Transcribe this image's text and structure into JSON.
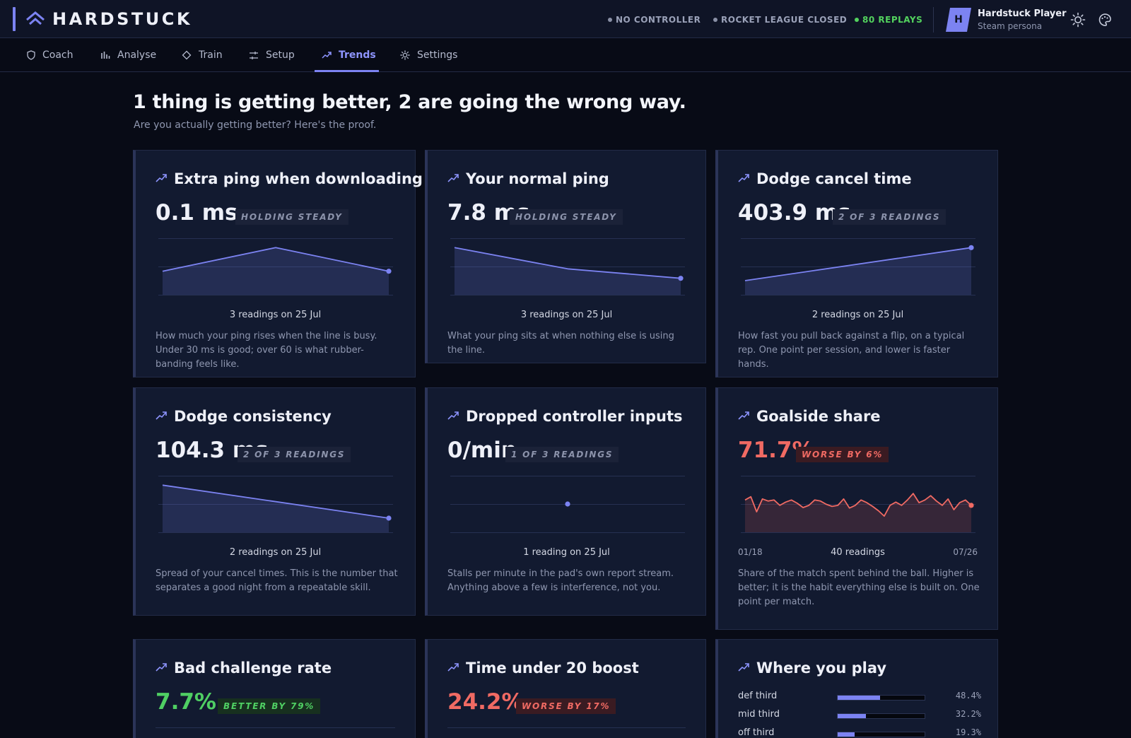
{
  "app": {
    "name": "HARDSTUCK"
  },
  "status": [
    {
      "label": "NO CONTROLLER",
      "state": "off"
    },
    {
      "label": "ROCKET LEAGUE CLOSED",
      "state": "off"
    },
    {
      "label": "80 REPLAYS",
      "state": "ok"
    }
  ],
  "user": {
    "initial": "H",
    "name": "Hardstuck Player",
    "subtitle": "Steam persona"
  },
  "icons": {
    "theme_toggle": "sun-icon",
    "palette": "palette-icon"
  },
  "tabs": [
    {
      "label": "Coach",
      "icon": "shield-icon",
      "active": false
    },
    {
      "label": "Analyse",
      "icon": "bars-icon",
      "active": false
    },
    {
      "label": "Train",
      "icon": "diamond-icon",
      "active": false
    },
    {
      "label": "Setup",
      "icon": "sliders-icon",
      "active": false
    },
    {
      "label": "Trends",
      "icon": "trend-icon",
      "active": true
    },
    {
      "label": "Settings",
      "icon": "gear-icon",
      "active": false
    }
  ],
  "header": {
    "title": "1 thing is getting better, 2 are going the wrong way.",
    "subtitle": "Are you actually getting better? Here's the proof."
  },
  "colors": {
    "accent": "#7c83f2",
    "bad": "#f06a63",
    "good": "#4fcf63",
    "neutral": "#8c93ab"
  },
  "cards": [
    {
      "title": "Extra ping when downloading",
      "value": "0.1 ms",
      "badge": "HOLDING STEADY",
      "tone": "neutral",
      "caption": "3 readings on 25 Jul",
      "description": "How much your ping rises when the line is busy. Under 30 ms is good; over 60 is what rubber-banding feels like."
    },
    {
      "title": "Your normal ping",
      "value": "7.8 ms",
      "badge": "HOLDING STEADY",
      "tone": "neutral",
      "caption": "3 readings on 25 Jul",
      "description": "What your ping sits at when nothing else is using the line."
    },
    {
      "title": "Dodge cancel time",
      "value": "403.9 ms",
      "badge": "2 OF 3 READINGS",
      "tone": "neutral",
      "caption": "2 readings on 25 Jul",
      "description": "How fast you pull back against a flip, on a typical rep. One point per session, and lower is faster hands."
    },
    {
      "title": "Dodge consistency",
      "value": "104.3 ms",
      "badge": "2 OF 3 READINGS",
      "tone": "neutral",
      "caption": "2 readings on 25 Jul",
      "description": "Spread of your cancel times. This is the number that separates a good night from a repeatable skill."
    },
    {
      "title": "Dropped controller inputs",
      "value": "0/min",
      "badge": "1 OF 3 READINGS",
      "tone": "neutral",
      "caption": "1 reading on 25 Jul",
      "description": "Stalls per minute in the pad's own report stream. Anything above a few is interference, not you."
    },
    {
      "title": "Goalside share",
      "value": "71.7%",
      "badge": "WORSE BY 6%",
      "tone": "bad",
      "caption": "40 readings",
      "date_start": "01/18",
      "date_end": "07/26",
      "description": "Share of the match spent behind the ball. Higher is better; it is the habit everything else is built on. One point per match."
    },
    {
      "title": "Bad challenge rate",
      "value": "7.7%",
      "badge": "BETTER BY 79%",
      "tone": "good"
    },
    {
      "title": "Time under 20 boost",
      "value": "24.2%",
      "badge": "WORSE BY 17%",
      "tone": "bad"
    },
    {
      "title": "Where you play",
      "zones": [
        {
          "label": "def third",
          "pct_text": "48.4%",
          "pct": 48.4
        },
        {
          "label": "mid third",
          "pct_text": "32.2%",
          "pct": 32.2
        },
        {
          "label": "off third",
          "pct_text": "19.3%",
          "pct": 19.3
        }
      ]
    }
  ],
  "chart_data": [
    {
      "type": "line",
      "title": "Extra ping when downloading",
      "y": [
        0.5,
        1.0,
        0.5
      ],
      "ylim": [
        0,
        1.2
      ]
    },
    {
      "type": "line",
      "title": "Your normal ping",
      "y": [
        1.0,
        0.55,
        0.35
      ],
      "ylim": [
        0,
        1.2
      ]
    },
    {
      "type": "line",
      "title": "Dodge cancel time",
      "y": [
        0.3,
        1.0
      ],
      "ylim": [
        0,
        1.2
      ]
    },
    {
      "type": "line",
      "title": "Dodge consistency",
      "y": [
        1.0,
        0.3
      ],
      "ylim": [
        0,
        1.2
      ]
    },
    {
      "type": "scatter",
      "title": "Dropped controller inputs",
      "y": [
        0.5
      ],
      "ylim": [
        0,
        1
      ]
    },
    {
      "type": "line",
      "title": "Goalside share",
      "y": [
        0.6,
        0.66,
        0.38,
        0.62,
        0.58,
        0.6,
        0.5,
        0.56,
        0.6,
        0.54,
        0.46,
        0.5,
        0.6,
        0.58,
        0.52,
        0.48,
        0.5,
        0.62,
        0.45,
        0.5,
        0.6,
        0.55,
        0.48,
        0.4,
        0.3,
        0.5,
        0.56,
        0.5,
        0.6,
        0.72,
        0.55,
        0.6,
        0.68,
        0.58,
        0.5,
        0.62,
        0.42,
        0.55,
        0.6,
        0.5
      ],
      "ylim": [
        0,
        1.05
      ]
    }
  ]
}
